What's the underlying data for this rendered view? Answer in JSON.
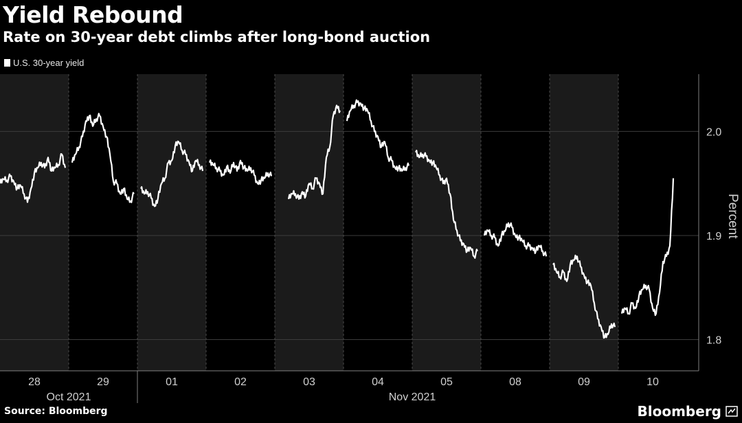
{
  "header": {
    "title": "Yield Rebound",
    "subtitle": "Rate on 30-year debt climbs after long-bond auction"
  },
  "footer": {
    "source": "Source: Bloomberg",
    "brand": "Bloomberg",
    "brand_icon": "bloomberg-logo-icon"
  },
  "colors": {
    "background": "#000000",
    "series": "#ffffff",
    "shade": "#1b1b1b",
    "grid": "#3c3c3c",
    "axis_text": "#d0d0d0"
  },
  "chart_data": {
    "type": "line",
    "title": "Yield Rebound",
    "subtitle": "Rate on 30-year debt climbs after long-bond auction",
    "xlabel": "",
    "ylabel": "Percent",
    "ylim": [
      1.77,
      2.055
    ],
    "yticks": [
      1.8,
      1.9,
      2.0
    ],
    "ytick_labels": [
      "1.8",
      "1.9",
      "2.0"
    ],
    "grid": true,
    "legend_position": "top-left",
    "days": [
      "28",
      "29",
      "01",
      "02",
      "03",
      "04",
      "05",
      "08",
      "09",
      "10"
    ],
    "months": [
      {
        "label": "Oct 2021",
        "start_day": 0,
        "end_day": 1
      },
      {
        "label": "Nov 2021",
        "start_day": 2,
        "end_day": 9
      }
    ],
    "series": [
      {
        "name": "U.S. 30-year yield",
        "segments": [
          {
            "x": [
              0.0,
              0.05,
              0.1,
              0.15,
              0.2,
              0.25,
              0.3,
              0.35,
              0.4,
              0.45,
              0.5,
              0.55,
              0.6,
              0.65,
              0.7,
              0.75,
              0.8,
              0.85,
              0.9,
              0.95
            ],
            "y": [
              1.95,
              1.954,
              1.953,
              1.957,
              1.952,
              1.945,
              1.948,
              1.94,
              1.932,
              1.945,
              1.96,
              1.965,
              1.97,
              1.965,
              1.975,
              1.962,
              1.965,
              1.968,
              1.978,
              1.965
            ]
          },
          {
            "x": [
              1.05,
              1.1,
              1.15,
              1.2,
              1.25,
              1.3,
              1.35,
              1.4,
              1.45,
              1.5,
              1.55,
              1.6,
              1.65,
              1.7,
              1.75,
              1.8,
              1.85,
              1.9,
              1.95
            ],
            "y": [
              1.97,
              1.978,
              1.985,
              1.995,
              2.01,
              2.015,
              2.005,
              2.012,
              2.015,
              2.005,
              1.995,
              1.978,
              1.952,
              1.95,
              1.94,
              1.945,
              1.935,
              1.933,
              1.94
            ]
          },
          {
            "x": [
              2.05,
              2.1,
              2.15,
              2.2,
              2.25,
              2.3,
              2.35,
              2.4,
              2.45,
              2.5,
              2.55,
              2.6,
              2.65,
              2.7,
              2.75,
              2.8,
              2.85,
              2.9,
              2.95
            ],
            "y": [
              1.945,
              1.94,
              1.942,
              1.936,
              1.928,
              1.936,
              1.95,
              1.955,
              1.97,
              1.972,
              1.986,
              1.99,
              1.982,
              1.978,
              1.971,
              1.962,
              1.972,
              1.968,
              1.962
            ]
          },
          {
            "x": [
              3.05,
              3.1,
              3.15,
              3.2,
              3.25,
              3.3,
              3.35,
              3.4,
              3.45,
              3.5,
              3.55,
              3.6,
              3.65,
              3.7,
              3.75,
              3.8,
              3.85,
              3.9,
              3.95
            ],
            "y": [
              1.97,
              1.968,
              1.965,
              1.962,
              1.958,
              1.966,
              1.96,
              1.97,
              1.962,
              1.972,
              1.965,
              1.962,
              1.965,
              1.958,
              1.95,
              1.953,
              1.955,
              1.96,
              1.957
            ]
          },
          {
            "x": [
              4.2,
              4.25,
              4.3,
              4.35,
              4.4,
              4.45,
              4.5,
              4.55,
              4.6,
              4.65,
              4.7,
              4.75,
              4.8,
              4.85,
              4.9,
              4.95
            ],
            "y": [
              1.935,
              1.94,
              1.94,
              1.935,
              1.942,
              1.938,
              1.95,
              1.945,
              1.955,
              1.95,
              1.94,
              1.975,
              1.985,
              2.015,
              2.025,
              2.02
            ]
          },
          {
            "x": [
              5.05,
              5.1,
              5.15,
              5.2,
              5.25,
              5.3,
              5.35,
              5.4,
              5.45,
              5.5,
              5.55,
              5.6,
              5.65,
              5.7,
              5.75,
              5.8,
              5.85,
              5.9,
              5.95
            ],
            "y": [
              2.01,
              2.02,
              2.025,
              2.028,
              2.027,
              2.022,
              2.02,
              2.01,
              2.0,
              1.995,
              1.985,
              1.99,
              1.975,
              1.972,
              1.965,
              1.965,
              1.962,
              1.965,
              1.967
            ]
          },
          {
            "x": [
              6.05,
              6.1,
              6.15,
              6.2,
              6.25,
              6.3,
              6.35,
              6.4,
              6.45,
              6.5,
              6.55,
              6.6,
              6.65,
              6.7,
              6.75,
              6.8,
              6.85,
              6.9,
              6.95
            ],
            "y": [
              1.98,
              1.975,
              1.978,
              1.976,
              1.972,
              1.97,
              1.965,
              1.958,
              1.95,
              1.955,
              1.94,
              1.915,
              1.905,
              1.895,
              1.892,
              1.885,
              1.888,
              1.88,
              1.885
            ]
          },
          {
            "x": [
              7.05,
              7.1,
              7.15,
              7.2,
              7.25,
              7.3,
              7.35,
              7.4,
              7.45,
              7.5,
              7.55,
              7.6,
              7.65,
              7.7,
              7.75,
              7.8,
              7.85,
              7.9,
              7.95
            ],
            "y": [
              1.9,
              1.905,
              1.9,
              1.898,
              1.89,
              1.9,
              1.904,
              1.912,
              1.908,
              1.9,
              1.898,
              1.895,
              1.89,
              1.89,
              1.888,
              1.885,
              1.89,
              1.885,
              1.88
            ]
          },
          {
            "x": [
              8.05,
              8.1,
              8.15,
              8.2,
              8.25,
              8.3,
              8.35,
              8.4,
              8.45,
              8.5,
              8.55,
              8.6,
              8.65,
              8.7,
              8.75,
              8.8,
              8.85,
              8.9,
              8.95
            ],
            "y": [
              1.872,
              1.865,
              1.86,
              1.865,
              1.856,
              1.872,
              1.876,
              1.88,
              1.87,
              1.862,
              1.855,
              1.852,
              1.835,
              1.82,
              1.812,
              1.802,
              1.805,
              1.815,
              1.812
            ]
          },
          {
            "x": [
              9.05,
              9.1,
              9.15,
              9.2,
              9.25,
              9.3,
              9.35,
              9.4,
              9.45,
              9.5,
              9.55,
              9.6,
              9.65,
              9.7,
              9.75,
              9.8
            ],
            "y": [
              1.825,
              1.83,
              1.825,
              1.835,
              1.83,
              1.842,
              1.848,
              1.852,
              1.848,
              1.83,
              1.825,
              1.845,
              1.875,
              1.88,
              1.89,
              1.955
            ]
          }
        ]
      }
    ]
  }
}
